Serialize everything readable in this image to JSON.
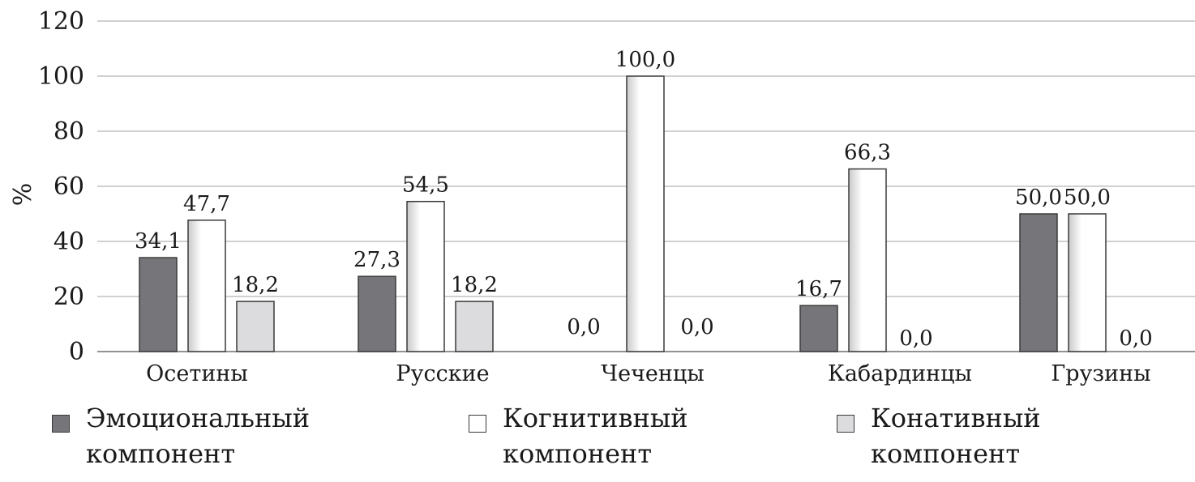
{
  "chart_data": {
    "type": "bar",
    "ylabel": "%",
    "xlabel": "",
    "ylim": [
      0,
      120
    ],
    "yticks": [
      0,
      20,
      40,
      60,
      80,
      100,
      120
    ],
    "grid": true,
    "legend_position": "bottom",
    "categories": [
      "Осетины",
      "Русские",
      "Чеченцы",
      "Кабардинцы",
      "Грузины"
    ],
    "series": [
      {
        "name": "Эмоциональный компонент",
        "color": "#76767a",
        "values": [
          34.1,
          27.3,
          0.0,
          16.7,
          50.0
        ],
        "labels": [
          "34,1",
          "27,3",
          "0,0",
          "16,7",
          "50,0"
        ]
      },
      {
        "name": "Когнитивный компонент",
        "color": "#ffffff",
        "values": [
          47.7,
          54.5,
          100.0,
          66.3,
          50.0
        ],
        "labels": [
          "47,7",
          "54,5",
          "100,0",
          "66,3",
          "50,0"
        ]
      },
      {
        "name": "Конативный компонент",
        "color": "#dcdcde",
        "values": [
          18.2,
          18.2,
          0.0,
          0.0,
          0.0
        ],
        "labels": [
          "18,2",
          "18,2",
          "0,0",
          "0,0",
          "0,0"
        ]
      }
    ]
  },
  "legend": {
    "items": [
      {
        "line1": "Эмоциональный",
        "line2": "компонент",
        "color": "#76767a"
      },
      {
        "line1": "Когнитивный",
        "line2": "компонент",
        "color": "#ffffff"
      },
      {
        "line1": "Конативный",
        "line2": "компонент",
        "color": "#dcdcde"
      }
    ]
  }
}
